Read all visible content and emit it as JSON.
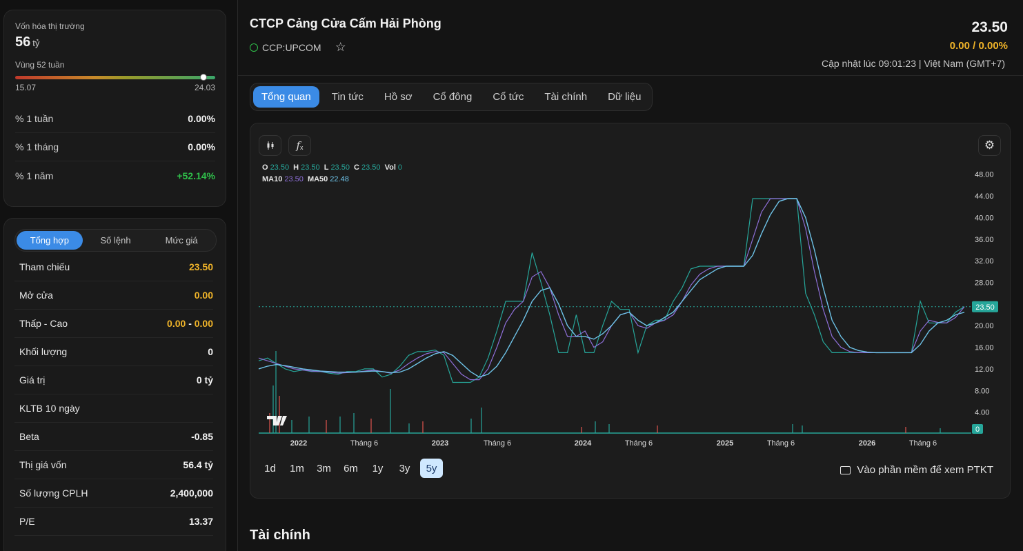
{
  "market_cap": {
    "label": "Vốn hóa thị trường",
    "value": "56",
    "unit": "tỷ"
  },
  "range52": {
    "label": "Vùng 52 tuần",
    "low": "15.07",
    "high": "24.03",
    "position": 0.94
  },
  "performance": [
    {
      "label": "% 1 tuần",
      "value": "0.00%",
      "color": "neutral"
    },
    {
      "label": "% 1 tháng",
      "value": "0.00%",
      "color": "neutral"
    },
    {
      "label": "% 1 năm",
      "value": "+52.14%",
      "color": "green"
    }
  ],
  "summary_tabs": [
    "Tổng hợp",
    "Số lệnh",
    "Mức giá"
  ],
  "summary": [
    {
      "label": "Tham chiếu",
      "value": "23.50",
      "color": "yellow"
    },
    {
      "label": "Mở cửa",
      "value": "0.00",
      "color": "yellow"
    },
    {
      "label": "Thấp - Cao",
      "low": "0.00",
      "sep": "-",
      "high": "0.00",
      "color": "yellow"
    },
    {
      "label": "Khối lượng",
      "value": "0"
    },
    {
      "label": "Giá trị",
      "value": "0 tỷ"
    },
    {
      "label": "KLTB 10 ngày",
      "value": ""
    },
    {
      "label": "Beta",
      "value": "-0.85"
    },
    {
      "label": "Thị giá vốn",
      "value": "56.4 tỷ"
    },
    {
      "label": "Số lượng CPLH",
      "value": "2,400,000"
    },
    {
      "label": "P/E",
      "value": "13.37"
    }
  ],
  "header": {
    "company": "CTCP Cảng Cửa Cấm Hải Phòng",
    "ticker": "CCP:UPCOM",
    "price": "23.50",
    "change": "0.00 / 0.00%",
    "updated": "Cập nhật lúc 09:01:23 | Việt Nam (GMT+7)"
  },
  "tabs": [
    "Tổng quan",
    "Tin tức",
    "Hồ sơ",
    "Cổ đông",
    "Cổ tức",
    "Tài chính",
    "Dữ liệu"
  ],
  "ohlc": {
    "o": "23.50",
    "h": "23.50",
    "l": "23.50",
    "c": "23.50",
    "vol": "0",
    "ma10": "23.50",
    "ma50": "22.48",
    "o_label": "O",
    "h_label": "H",
    "l_label": "L",
    "c_label": "C",
    "vol_label": "Vol",
    "ma10_label": "MA10",
    "ma50_label": "MA50"
  },
  "ranges": [
    "1d",
    "1m",
    "3m",
    "6m",
    "1y",
    "3y",
    "5y"
  ],
  "active_range": "5y",
  "ptkt_label": "Vào phần mềm để xem PTKT",
  "section_title": "Tài chính",
  "colors": {
    "accent": "#3b8be6",
    "yellow": "#f0b429",
    "green": "#2fbf4a",
    "price_line": "#26a69a",
    "ma10": "#8e6fd8",
    "ma50": "#6ec3e8"
  },
  "chart_data": {
    "type": "line",
    "y_ticks": [
      "4.00",
      "8.00",
      "12.00",
      "16.00",
      "20.00",
      "24.00",
      "28.00",
      "32.00",
      "36.00",
      "40.00",
      "44.00",
      "48.00"
    ],
    "x_ticks": [
      "2022",
      "Tháng 6",
      "2023",
      "Tháng 6",
      "2024",
      "Tháng 6",
      "2025",
      "Tháng 6",
      "2026",
      "Tháng 6"
    ],
    "ylim": [
      0,
      50
    ],
    "last_price": "23.50",
    "last_volume": "0",
    "series": [
      {
        "name": "Price",
        "values": [
          13.5,
          14,
          13,
          12,
          11.5,
          11.8,
          11.5,
          11.5,
          11.2,
          11,
          11.5,
          11.5,
          12,
          12,
          10.5,
          11,
          12.5,
          14.5,
          15.2,
          15.2,
          15.5,
          14.5,
          9.5,
          9.5,
          9.5,
          10.5,
          14,
          19,
          24.5,
          24.5,
          24.5,
          33.5,
          28,
          22,
          15,
          15,
          22,
          15,
          15,
          20,
          24.5,
          23,
          23,
          15,
          20,
          21,
          21,
          24.5,
          27,
          30.5,
          31,
          31,
          31,
          31,
          31,
          31,
          43.5,
          43.5,
          43.5,
          43.5,
          43.5,
          43.5,
          26,
          22,
          17,
          15,
          15,
          15,
          15,
          15,
          15,
          15,
          15,
          15,
          15,
          24.5,
          20.5,
          20.5,
          20.5,
          22.5,
          23.5
        ]
      },
      {
        "name": "MA10",
        "values": [
          14,
          13.5,
          13,
          12.5,
          12,
          11.8,
          11.6,
          11.5,
          11.4,
          11.2,
          11.3,
          11.4,
          11.6,
          11.8,
          11.5,
          11.2,
          11.8,
          13,
          14,
          14.8,
          15.2,
          15,
          13,
          11,
          10,
          10,
          12,
          16,
          20.5,
          23,
          24.5,
          29,
          30,
          27,
          22,
          18,
          18,
          19,
          16,
          17,
          20,
          22,
          22.5,
          20,
          19.5,
          20.5,
          21,
          22,
          24.5,
          27.5,
          29.5,
          30.5,
          31,
          31,
          31,
          31,
          36,
          41,
          43.5,
          43.5,
          43.5,
          43.5,
          38,
          30,
          23,
          18,
          16,
          15.2,
          15,
          15,
          15,
          15,
          15,
          15,
          15,
          19,
          21,
          20.6,
          20.5,
          21.5,
          23.5
        ]
      },
      {
        "name": "MA50",
        "values": [
          12,
          12.5,
          12.8,
          12.6,
          12.3,
          12,
          11.8,
          11.6,
          11.5,
          11.4,
          11.4,
          11.4,
          11.5,
          11.6,
          11.5,
          11.3,
          11.4,
          12,
          13,
          14,
          14.8,
          15.2,
          14.5,
          13,
          11.5,
          10.5,
          11,
          12.5,
          15,
          18,
          21,
          24.5,
          26.5,
          27,
          24,
          20,
          18,
          18,
          17.5,
          18.5,
          20,
          22,
          22.5,
          21,
          20,
          20.5,
          21.5,
          22.5,
          24.5,
          26.5,
          28.5,
          29.5,
          30.5,
          31,
          31,
          31,
          33,
          37,
          40.5,
          43,
          43.5,
          43.5,
          40,
          34,
          27,
          21,
          18,
          16,
          15.4,
          15.1,
          15,
          15,
          15,
          15,
          15,
          16.5,
          19,
          20.5,
          21,
          22,
          22.48
        ]
      }
    ]
  }
}
